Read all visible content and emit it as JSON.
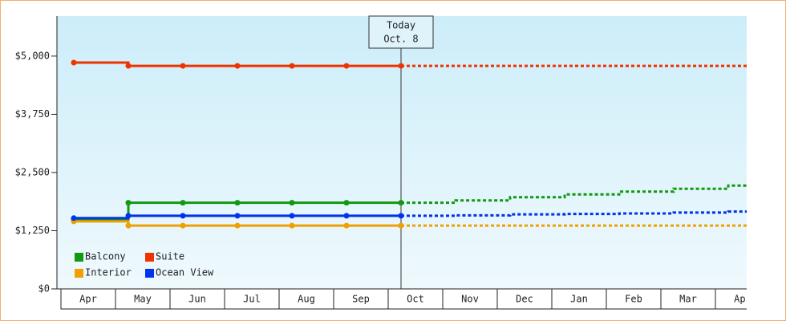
{
  "chart_data": {
    "type": "line",
    "categories": [
      "Apr",
      "May",
      "Jun",
      "Jul",
      "Aug",
      "Sep",
      "Oct",
      "Nov",
      "Dec",
      "Jan",
      "Feb",
      "Mar",
      "Apr"
    ],
    "series": [
      {
        "name": "Balcony",
        "color": "#119911",
        "values": [
          1480,
          1850,
          1850,
          1850,
          1850,
          1850,
          1850,
          null,
          null,
          null,
          null,
          null,
          null
        ],
        "forecast_values": [
          null,
          null,
          null,
          null,
          null,
          null,
          1850,
          1900,
          1970,
          2030,
          2090,
          2150,
          2220
        ]
      },
      {
        "name": "Suite",
        "color": "#ee3300",
        "values": [
          4860,
          4790,
          4790,
          4790,
          4790,
          4790,
          4790,
          null,
          null,
          null,
          null,
          null,
          null
        ],
        "forecast_values": [
          null,
          null,
          null,
          null,
          null,
          null,
          4790,
          4790,
          4790,
          4790,
          4790,
          4790,
          4790
        ]
      },
      {
        "name": "Interior",
        "color": "#f0a000",
        "values": [
          1450,
          1360,
          1360,
          1360,
          1360,
          1360,
          1360,
          null,
          null,
          null,
          null,
          null,
          null
        ],
        "forecast_values": [
          null,
          null,
          null,
          null,
          null,
          null,
          1360,
          1360,
          1360,
          1360,
          1360,
          1360,
          1360
        ]
      },
      {
        "name": "Ocean View",
        "color": "#0033ee",
        "values": [
          1520,
          1570,
          1570,
          1570,
          1570,
          1570,
          1570,
          null,
          null,
          null,
          null,
          null,
          null
        ],
        "forecast_values": [
          null,
          null,
          null,
          null,
          null,
          null,
          1570,
          1580,
          1600,
          1610,
          1620,
          1640,
          1660
        ]
      }
    ],
    "annotation": {
      "lines": [
        "Today",
        "Oct. 8"
      ],
      "category_index": 6
    },
    "ylim": [
      0,
      5860
    ],
    "yticks": [
      {
        "value": 0,
        "label": "$0"
      },
      {
        "value": 1250,
        "label": "$1,250"
      },
      {
        "value": 2500,
        "label": "$2,500"
      },
      {
        "value": 3750,
        "label": "$3,750"
      },
      {
        "value": 5000,
        "label": "$5,000"
      }
    ],
    "grid": false
  }
}
